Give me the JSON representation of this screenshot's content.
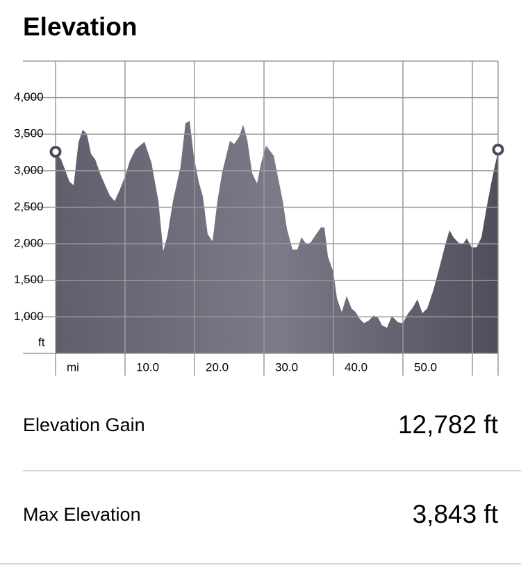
{
  "header": {
    "title": "Elevation"
  },
  "chart_data": {
    "type": "area",
    "x_unit": "mi",
    "y_unit": "ft",
    "color": "#6a6a78",
    "grid": true,
    "xlim": [
      0,
      63.7
    ],
    "ylim": [
      500,
      4500
    ],
    "xticks": [
      {
        "value": 0,
        "label": "mi"
      },
      {
        "value": 10,
        "label": "10.0"
      },
      {
        "value": 20,
        "label": "20.0"
      },
      {
        "value": 30,
        "label": "30.0"
      },
      {
        "value": 40,
        "label": "40.0"
      },
      {
        "value": 50,
        "label": "50.0"
      },
      {
        "value": 60,
        "label": null
      }
    ],
    "yticks": [
      {
        "value": 1000,
        "label": "1,000"
      },
      {
        "value": 1500,
        "label": "1,500"
      },
      {
        "value": 2000,
        "label": "2,000"
      },
      {
        "value": 2500,
        "label": "2,500"
      },
      {
        "value": 3000,
        "label": "3,000"
      },
      {
        "value": 3500,
        "label": "3,500"
      },
      {
        "value": 4000,
        "label": "4,000"
      }
    ],
    "x": [
      0,
      0.8,
      2.0,
      2.6,
      3.3,
      3.9,
      4.5,
      5.1,
      5.7,
      6.5,
      7.8,
      8.5,
      9.2,
      10.0,
      10.7,
      11.5,
      12.8,
      13.8,
      14.8,
      15.5,
      16.1,
      16.9,
      18.0,
      18.7,
      19.3,
      19.9,
      20.6,
      21.2,
      21.9,
      22.6,
      23.3,
      24.0,
      25.1,
      25.7,
      26.4,
      27.0,
      27.6,
      28.3,
      29.0,
      29.6,
      30.3,
      31.4,
      32.0,
      32.7,
      33.3,
      34.1,
      34.8,
      35.4,
      36.1,
      36.7,
      37.5,
      38.2,
      38.7,
      39.2,
      40.0,
      40.5,
      41.2,
      41.9,
      42.6,
      43.2,
      43.8,
      44.4,
      45.1,
      45.8,
      46.4,
      47.0,
      47.7,
      48.4,
      49.3,
      50.0,
      50.7,
      51.4,
      52.1,
      52.8,
      53.5,
      54.4,
      55.2,
      56.0,
      56.7,
      57.3,
      58.0,
      58.6,
      59.2,
      59.9,
      60.6,
      61.3,
      62.0,
      62.7,
      63.7
    ],
    "values": [
      3240,
      3155,
      2850,
      2800,
      3390,
      3560,
      3505,
      3230,
      3155,
      2940,
      2660,
      2585,
      2730,
      2920,
      3135,
      3290,
      3395,
      3110,
      2585,
      1900,
      2110,
      2585,
      3060,
      3650,
      3680,
      3200,
      2850,
      2650,
      2130,
      2035,
      2585,
      2985,
      3410,
      3365,
      3460,
      3630,
      3420,
      2965,
      2825,
      3110,
      3345,
      3205,
      2920,
      2585,
      2205,
      1920,
      1920,
      2090,
      1995,
      2015,
      2130,
      2225,
      2225,
      1825,
      1610,
      1255,
      1065,
      1285,
      1115,
      1065,
      970,
      915,
      950,
      1020,
      990,
      885,
      850,
      1010,
      925,
      915,
      1040,
      1125,
      1240,
      1050,
      1115,
      1370,
      1655,
      1950,
      2185,
      2085,
      2015,
      1990,
      2075,
      1950,
      1950,
      2085,
      2470,
      2825,
      3270
    ]
  },
  "stats": [
    {
      "label": "Elevation Gain",
      "value": "12,782 ft"
    },
    {
      "label": "Max Elevation",
      "value": "3,843 ft"
    }
  ]
}
